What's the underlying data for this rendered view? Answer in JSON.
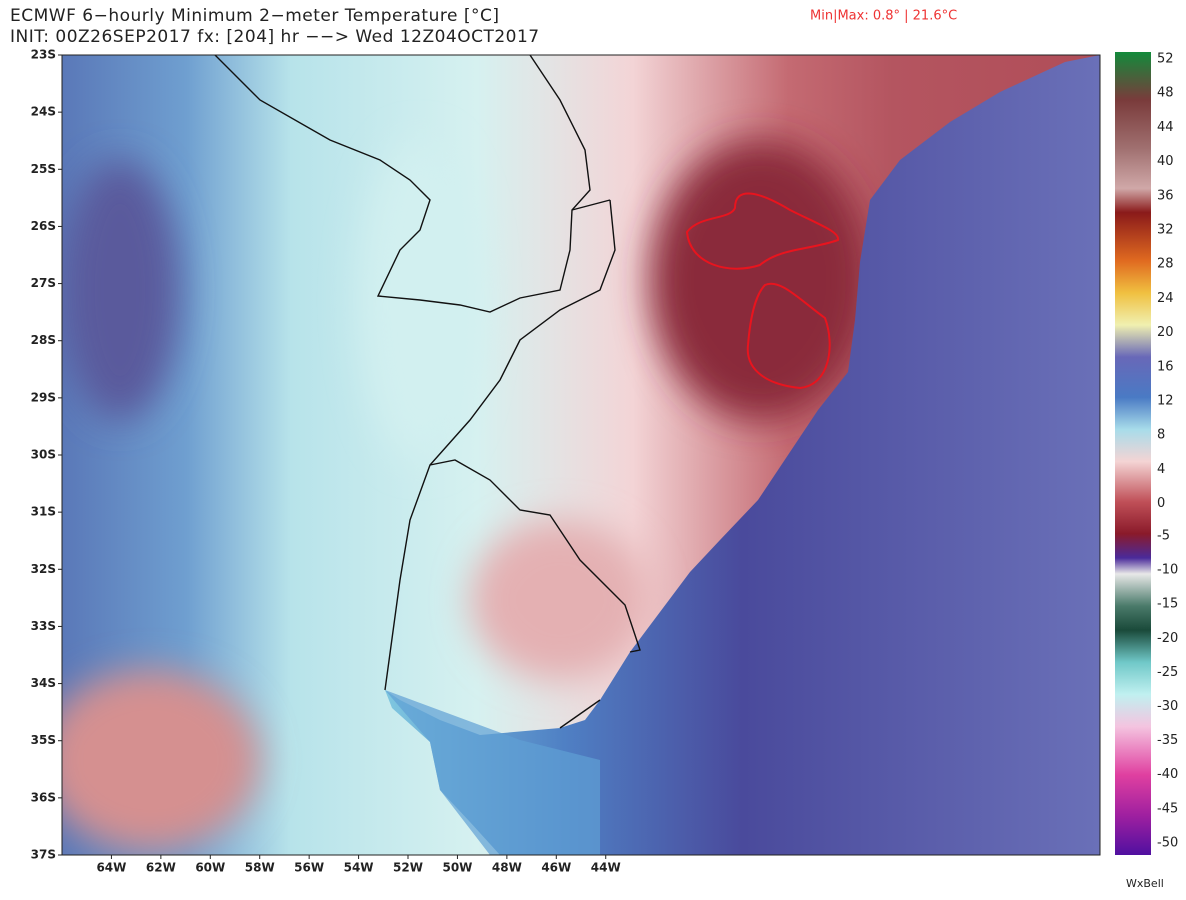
{
  "header": {
    "title": "ECMWF 6−hourly Minimum 2−meter Temperature [°C]",
    "init": "INIT: 00Z26SEP2017  fx: [204] hr −−> Wed 12Z04OCT2017",
    "minmax": "Min|Max: 0.8° | 21.6°C"
  },
  "map": {
    "lat_labels": [
      "23S",
      "24S",
      "25S",
      "26S",
      "27S",
      "28S",
      "29S",
      "30S",
      "31S",
      "32S",
      "33S",
      "34S",
      "35S",
      "36S",
      "37S"
    ],
    "lon_labels": [
      "64W",
      "62W",
      "60W",
      "58W",
      "56W",
      "54W",
      "52W",
      "50W",
      "48W",
      "46W",
      "44W"
    ]
  },
  "colorbar": {
    "upper_labels": [
      "52",
      "48",
      "44",
      "40",
      "36",
      "32",
      "28",
      "24",
      "20",
      "16",
      "12",
      "8",
      "4",
      "0"
    ],
    "lower_labels": [
      "-5",
      "-10",
      "-15",
      "-20",
      "-25",
      "-30",
      "-35",
      "-40",
      "-45",
      "-50"
    ]
  },
  "credit": "WxBell"
}
